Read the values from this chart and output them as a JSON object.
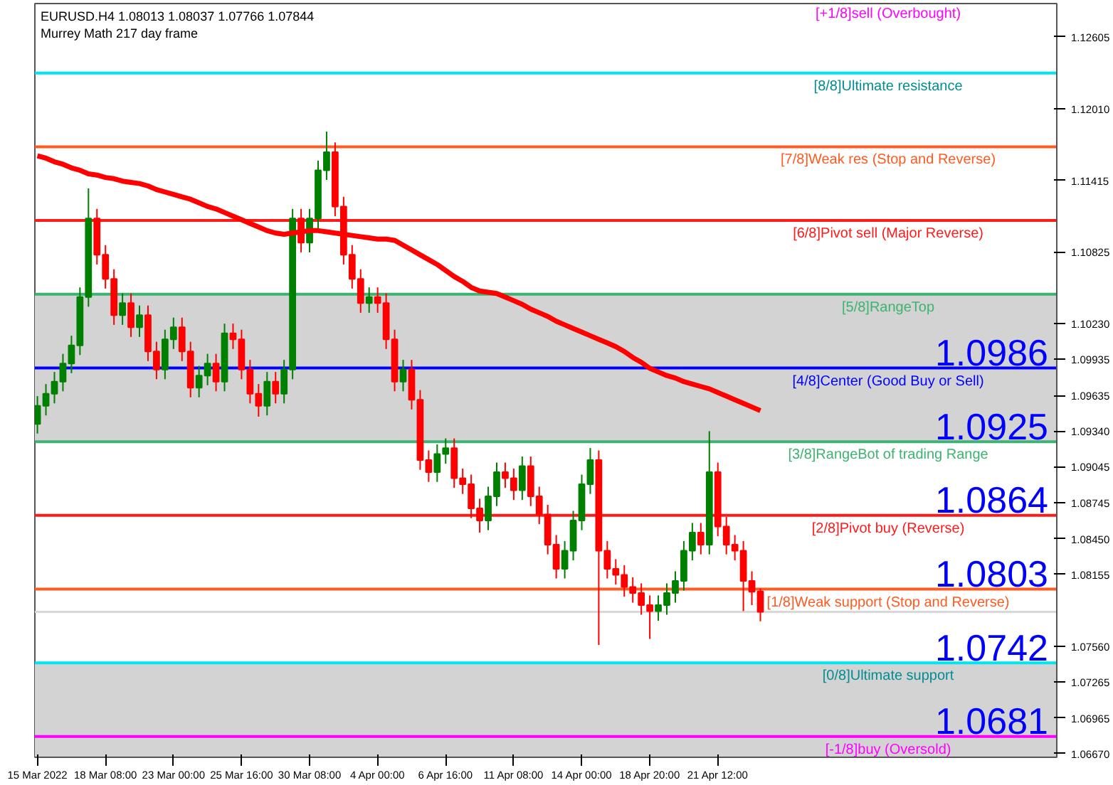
{
  "chart_data": {
    "type": "candlestick",
    "annotations": [
      "EURUSD.H4  1.08013 1.08037 1.07766 1.07844",
      "Murrey Math 217 day frame",
      "[+1/8]sell (Overbought)",
      {
        "text": "1.0986",
        "y": 1.0986
      },
      {
        "text": "1.0925",
        "y": 1.0925
      },
      {
        "text": "1.0864",
        "y": 1.0864
      },
      {
        "text": "1.0803",
        "y": 1.0803
      },
      {
        "text": "1.0742",
        "y": 1.0742
      },
      {
        "text": "1.0681",
        "y": 1.0681
      }
    ],
    "categories": [
      "15 Mar 2022",
      null,
      null,
      null,
      null,
      null,
      null,
      null,
      "18 Mar 08:00",
      null,
      null,
      null,
      null,
      null,
      null,
      null,
      "23 Mar 00:00",
      null,
      null,
      null,
      null,
      null,
      null,
      null,
      "25 Mar 16:00",
      null,
      null,
      null,
      null,
      null,
      null,
      null,
      "30 Mar 08:00",
      null,
      null,
      null,
      null,
      null,
      null,
      null,
      "4 Apr 00:00",
      null,
      null,
      null,
      null,
      null,
      null,
      null,
      "6 Apr 16:00",
      null,
      null,
      null,
      null,
      null,
      null,
      null,
      "11 Apr 08:00",
      null,
      null,
      null,
      null,
      null,
      null,
      null,
      "14 Apr 00:00",
      null,
      null,
      null,
      null,
      null,
      null,
      null,
      "18 Apr 20:00",
      null,
      null,
      null,
      null,
      null,
      null,
      null,
      "21 Apr 12:00",
      null,
      null,
      null,
      null,
      null
    ],
    "ohlc": [
      [
        1.094,
        1.0963,
        1.0932,
        1.0955
      ],
      [
        1.0955,
        1.0973,
        1.0947,
        1.0965
      ],
      [
        1.0965,
        1.0983,
        1.0957,
        1.0975
      ],
      [
        1.0975,
        1.0998,
        1.0967,
        1.099
      ],
      [
        1.099,
        1.1013,
        1.0982,
        1.1005
      ],
      [
        1.1005,
        1.1053,
        1.0997,
        1.1045
      ],
      [
        1.1045,
        1.1135,
        1.1037,
        1.111
      ],
      [
        1.111,
        1.1118,
        1.1072,
        1.108
      ],
      [
        1.108,
        1.1088,
        1.1052,
        1.106
      ],
      [
        1.106,
        1.1068,
        1.1022,
        1.103
      ],
      [
        1.103,
        1.1048,
        1.1022,
        1.104
      ],
      [
        1.104,
        1.1048,
        1.1012,
        1.102
      ],
      [
        1.102,
        1.1038,
        1.1012,
        1.103
      ],
      [
        1.103,
        1.1038,
        1.0992,
        1.1
      ],
      [
        1.1,
        1.1008,
        1.0977,
        1.0985
      ],
      [
        1.0985,
        1.1018,
        1.0977,
        1.101
      ],
      [
        1.101,
        1.1028,
        1.1002,
        1.102
      ],
      [
        1.102,
        1.1028,
        1.0992,
        1.1
      ],
      [
        1.1,
        1.1008,
        1.0962,
        1.097
      ],
      [
        1.097,
        1.0988,
        1.0962,
        1.098
      ],
      [
        1.098,
        1.0998,
        1.0972,
        1.099
      ],
      [
        1.099,
        1.0998,
        1.0967,
        1.0975
      ],
      [
        1.0975,
        1.1023,
        1.0967,
        1.1015
      ],
      [
        1.1015,
        1.1023,
        1.1002,
        1.101
      ],
      [
        1.101,
        1.1018,
        1.0977,
        1.0985
      ],
      [
        1.0985,
        1.0993,
        1.0957,
        1.0965
      ],
      [
        1.0965,
        1.0973,
        1.0946,
        1.0955
      ],
      [
        1.0955,
        1.0983,
        1.0947,
        1.0975
      ],
      [
        1.0975,
        1.0983,
        1.0957,
        1.0965
      ],
      [
        1.0965,
        1.0993,
        1.0957,
        1.0985
      ],
      [
        1.0985,
        1.1118,
        1.0977,
        1.111
      ],
      [
        1.111,
        1.1118,
        1.1082,
        1.109
      ],
      [
        1.109,
        1.1118,
        1.1082,
        1.111
      ],
      [
        1.111,
        1.1158,
        1.1102,
        1.115
      ],
      [
        1.115,
        1.1182,
        1.1142,
        1.1165
      ],
      [
        1.1165,
        1.1173,
        1.1112,
        1.112
      ],
      [
        1.112,
        1.1128,
        1.1072,
        1.108
      ],
      [
        1.108,
        1.1088,
        1.1052,
        1.106
      ],
      [
        1.106,
        1.1068,
        1.1032,
        1.104
      ],
      [
        1.104,
        1.1053,
        1.1032,
        1.1045
      ],
      [
        1.1045,
        1.1053,
        1.1032,
        1.104
      ],
      [
        1.104,
        1.1048,
        1.1002,
        1.101
      ],
      [
        1.101,
        1.1018,
        1.0967,
        1.0975
      ],
      [
        1.0975,
        1.0993,
        1.0967,
        1.0985
      ],
      [
        1.0985,
        1.0993,
        1.0952,
        1.096
      ],
      [
        1.096,
        1.0968,
        1.0902,
        1.091
      ],
      [
        1.091,
        1.0918,
        1.0892,
        1.09
      ],
      [
        1.09,
        1.0923,
        1.0892,
        1.0915
      ],
      [
        1.0915,
        1.0928,
        1.0907,
        1.092
      ],
      [
        1.092,
        1.0928,
        1.0887,
        1.0895
      ],
      [
        1.0895,
        1.0903,
        1.0882,
        1.089
      ],
      [
        1.089,
        1.0898,
        1.0862,
        1.087
      ],
      [
        1.087,
        1.0878,
        1.085,
        1.086
      ],
      [
        1.086,
        1.0888,
        1.0852,
        1.088
      ],
      [
        1.088,
        1.0908,
        1.0872,
        1.09
      ],
      [
        1.09,
        1.0908,
        1.0887,
        1.0895
      ],
      [
        1.0895,
        1.0903,
        1.0877,
        1.0885
      ],
      [
        1.0885,
        1.0913,
        1.0877,
        1.0905
      ],
      [
        1.0905,
        1.0913,
        1.0872,
        1.088
      ],
      [
        1.088,
        1.0888,
        1.0857,
        1.0865
      ],
      [
        1.0865,
        1.0873,
        1.0832,
        1.084
      ],
      [
        1.084,
        1.0848,
        1.0812,
        1.082
      ],
      [
        1.082,
        1.0843,
        1.0812,
        1.0835
      ],
      [
        1.0835,
        1.0868,
        1.0827,
        1.086
      ],
      [
        1.086,
        1.0898,
        1.0852,
        1.089
      ],
      [
        1.089,
        1.092,
        1.0882,
        1.091
      ],
      [
        1.091,
        1.0918,
        1.0757,
        1.0835
      ],
      [
        1.0835,
        1.0843,
        1.0812,
        1.082
      ],
      [
        1.082,
        1.0828,
        1.0807,
        1.0815
      ],
      [
        1.0815,
        1.0823,
        1.0797,
        1.0805
      ],
      [
        1.0805,
        1.0813,
        1.0792,
        1.08
      ],
      [
        1.08,
        1.0808,
        1.0782,
        1.079
      ],
      [
        1.079,
        1.0798,
        1.0762,
        1.0785
      ],
      [
        1.0785,
        1.0798,
        1.0777,
        1.079
      ],
      [
        1.079,
        1.0808,
        1.0782,
        1.08
      ],
      [
        1.08,
        1.0818,
        1.0792,
        1.081
      ],
      [
        1.081,
        1.0843,
        1.0802,
        1.0835
      ],
      [
        1.0835,
        1.0858,
        1.0827,
        1.085
      ],
      [
        1.085,
        1.0858,
        1.0832,
        1.084
      ],
      [
        1.084,
        1.0934,
        1.0832,
        1.09
      ],
      [
        1.09,
        1.0908,
        1.0847,
        1.0855
      ],
      [
        1.0855,
        1.0863,
        1.0832,
        1.084
      ],
      [
        1.084,
        1.0848,
        1.0827,
        1.0835
      ],
      [
        1.0835,
        1.0843,
        1.0785,
        1.081
      ],
      [
        1.081,
        1.0818,
        1.079,
        1.0801
      ],
      [
        1.08013,
        1.08037,
        1.07766,
        1.07844
      ]
    ],
    "series": [
      {
        "type": "line",
        "color": "#ff0000",
        "values": [
          1.1162,
          1.116,
          1.1157,
          1.1155,
          1.1152,
          1.115,
          1.1147,
          1.1146,
          1.1144,
          1.1143,
          1.1141,
          1.114,
          1.1139,
          1.1137,
          1.1134,
          1.1132,
          1.113,
          1.1128,
          1.1126,
          1.1123,
          1.112,
          1.1118,
          1.1115,
          1.1112,
          1.1109,
          1.1106,
          1.1103,
          1.11,
          1.1098,
          1.1097,
          1.1098,
          1.1099,
          1.11,
          1.11,
          1.1099,
          1.1098,
          1.1097,
          1.1096,
          1.1095,
          1.1094,
          1.1093,
          1.1093,
          1.1092,
          1.1088,
          1.1084,
          1.108,
          1.1076,
          1.1072,
          1.1067,
          1.1062,
          1.1058,
          1.1053,
          1.105,
          1.1049,
          1.1048,
          1.1045,
          1.1042,
          1.1039,
          1.1035,
          1.1032,
          1.1029,
          1.1025,
          1.1022,
          1.1019,
          1.1016,
          1.1013,
          1.101,
          1.1007,
          1.1004,
          1.1,
          1.0995,
          1.0991,
          1.0986,
          1.0983,
          1.098,
          1.0978,
          1.0975,
          1.0973,
          1.0971,
          1.0969,
          1.0966,
          1.0963,
          1.096,
          1.0957,
          1.0954,
          1.0951
        ]
      }
    ],
    "ref_lines": [
      {
        "axis": "y",
        "value": 1.12305,
        "label": "[8/8]Ultimate resistance",
        "color": "#00e5ee"
      },
      {
        "axis": "y",
        "value": 1.11694,
        "label": "[7/8]Weak res (Stop and Reverse)",
        "color": "#ff5a1f"
      },
      {
        "axis": "y",
        "value": 1.11084,
        "label": "[6/8]Pivot sell (Major Reverse)",
        "color": "#ff1a1a"
      },
      {
        "axis": "y",
        "value": 1.10474,
        "label": "[5/8]RangeTop",
        "color": "#3cb371"
      },
      {
        "axis": "y",
        "value": 1.09863,
        "label": "[4/8]Center (Good Buy or Sell)",
        "color": "#0000ff"
      },
      {
        "axis": "y",
        "value": 1.09253,
        "label": "[3/8]RangeBot of trading Range",
        "color": "#3cb371"
      },
      {
        "axis": "y",
        "value": 1.08643,
        "label": "[2/8]Pivot buy (Reverse)",
        "color": "#ff1a1a"
      },
      {
        "axis": "y",
        "value": 1.08032,
        "label": "[1/8]Weak support (Stop and Reverse)",
        "color": "#ff5a1f"
      },
      {
        "axis": "y",
        "value": 1.07844,
        "label": null,
        "color": "#d8d8d8"
      },
      {
        "axis": "y",
        "value": 1.07422,
        "label": "[0/8]Ultimate support",
        "color": "#00e5ee"
      },
      {
        "axis": "y",
        "value": 1.06812,
        "label": "[-1/8]buy (Oversold)",
        "color": "#ff00ff"
      }
    ],
    "bands": [
      {
        "axis": "y",
        "from": 1.09253,
        "to": 1.10474,
        "color": "#d3d3d3"
      },
      {
        "axis": "y",
        "from": 1.0664,
        "to": 1.07422,
        "color": "#d3d3d3"
      }
    ],
    "ylim": [
      1.0664,
      1.1288
    ],
    "yticks": [
      {
        "value": 1.12605,
        "label": "1.12605"
      },
      {
        "value": 1.1201,
        "label": "1.12010"
      },
      {
        "value": 1.11415,
        "label": "1.11415"
      },
      {
        "value": 1.10825,
        "label": "1.10825"
      },
      {
        "value": 1.1023,
        "label": "1.10230"
      },
      {
        "value": 1.09935,
        "label": "1.09935"
      },
      {
        "value": 1.09635,
        "label": "1.09635"
      },
      {
        "value": 1.0934,
        "label": "1.09340"
      },
      {
        "value": 1.09045,
        "label": "1.09045"
      },
      {
        "value": 1.08745,
        "label": "1.08745"
      },
      {
        "value": 1.0845,
        "label": "1.08450"
      },
      {
        "value": 1.08155,
        "label": "1.08155"
      },
      {
        "value": 1.0756,
        "label": "1.07560"
      },
      {
        "value": 1.07265,
        "label": "1.07265"
      },
      {
        "value": 1.06965,
        "label": "1.06965"
      },
      {
        "value": 1.0667,
        "label": "1.06670"
      }
    ],
    "grid": false
  }
}
